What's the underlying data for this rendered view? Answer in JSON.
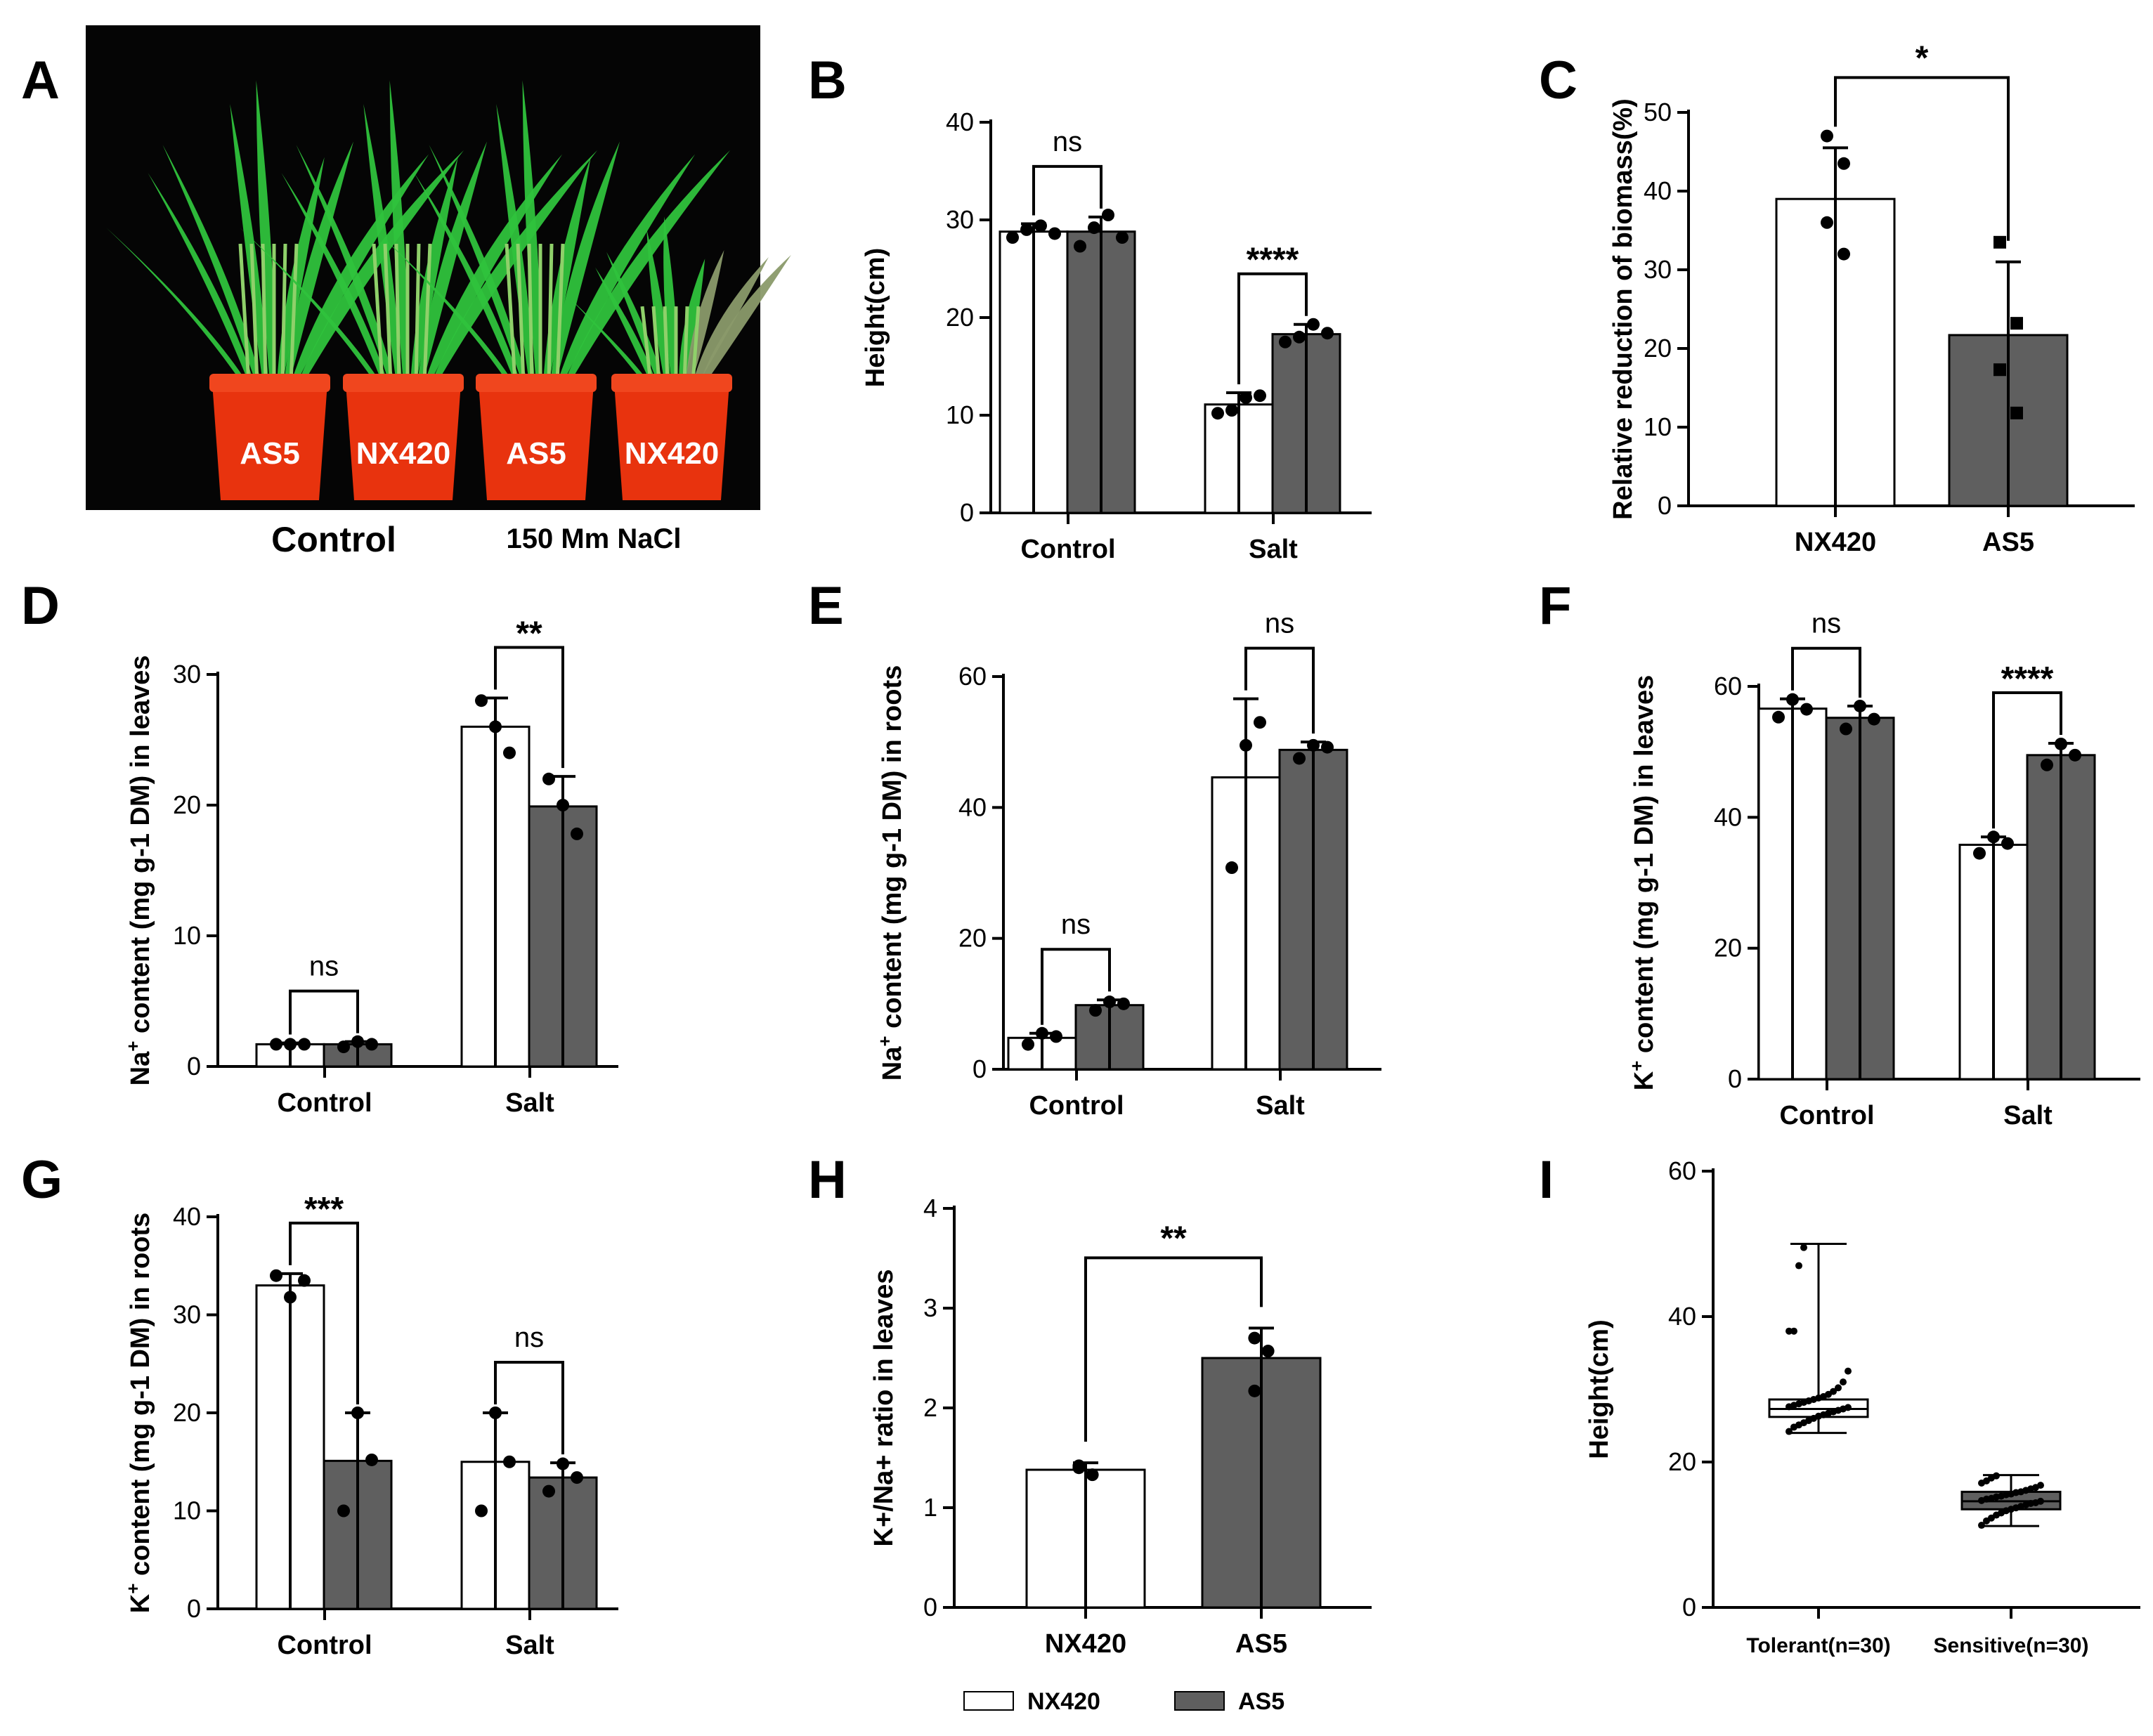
{
  "colors": {
    "nx420": "#ffffff",
    "as5": "#5f5f5f",
    "axis": "#000000",
    "photo_bg": "#050505",
    "pot": "#e8330e",
    "plant": "#2fbf3b"
  },
  "legend": [
    {
      "label": "NX420",
      "fill": "#ffffff"
    },
    {
      "label": "AS5",
      "fill": "#5f5f5f"
    }
  ],
  "photo": {
    "label": "A",
    "pots": [
      "AS5",
      "NX420",
      "AS5",
      "NX420"
    ],
    "caption_control": "Control",
    "caption_salt": "150 Mm NaCl"
  },
  "chart_data": [
    {
      "id": "B",
      "label": "B",
      "type": "bar",
      "ylabel": "Height(cm)",
      "ylim": [
        0,
        40
      ],
      "yticks": [
        0,
        10,
        20,
        30,
        40
      ],
      "categories": [
        "Control",
        "Salt"
      ],
      "series": [
        {
          "name": "NX420",
          "values": [
            28.8,
            11.1
          ],
          "errors": [
            0.8,
            1.2
          ],
          "points": [
            [
              28.2,
              29.0,
              29.4,
              28.6
            ],
            [
              10.2,
              10.5,
              11.8,
              12.0
            ]
          ]
        },
        {
          "name": "AS5",
          "values": [
            28.8,
            18.3
          ],
          "errors": [
            1.5,
            1.0
          ],
          "points": [
            [
              27.3,
              29.2,
              30.5,
              28.2
            ],
            [
              17.5,
              18.0,
              19.3,
              18.4
            ]
          ]
        }
      ],
      "significance": [
        "ns",
        "****"
      ]
    },
    {
      "id": "C",
      "label": "C",
      "type": "bar",
      "ylabel": "Relative  reduction of biomass(%)",
      "ylim": [
        0,
        50
      ],
      "yticks": [
        0,
        10,
        20,
        30,
        40,
        50
      ],
      "categories": [
        "NX420",
        "AS5"
      ],
      "bars": [
        {
          "value": 39.0,
          "error": 6.5,
          "points": [
            47.0,
            43.5,
            36.0,
            32.0
          ],
          "fill": "#ffffff",
          "marker": "circle"
        },
        {
          "value": 21.7,
          "error": 9.3,
          "points": [
            33.5,
            23.2,
            17.3,
            11.8
          ],
          "fill": "#5f5f5f",
          "marker": "square"
        }
      ],
      "significance": "*"
    },
    {
      "id": "D",
      "label": "D",
      "type": "bar",
      "ylabel": "content (mg g-1 DM) in leaves",
      "ylabel_ion": "Na",
      "ylabel_sup": "+",
      "ylim": [
        0,
        30
      ],
      "yticks": [
        0,
        10,
        20,
        30
      ],
      "categories": [
        "Control",
        "Salt"
      ],
      "series": [
        {
          "name": "NX420",
          "values": [
            1.7,
            26.0
          ],
          "errors": [
            0.1,
            2.2
          ],
          "points": [
            [
              1.7,
              1.7,
              1.7
            ],
            [
              28.0,
              26.0,
              24.0
            ]
          ]
        },
        {
          "name": "AS5",
          "values": [
            1.7,
            19.9
          ],
          "errors": [
            0.2,
            2.3
          ],
          "points": [
            [
              1.5,
              1.9,
              1.7
            ],
            [
              22.0,
              20.0,
              17.8
            ]
          ]
        }
      ],
      "significance": [
        "ns",
        "**"
      ]
    },
    {
      "id": "E",
      "label": "E",
      "type": "bar",
      "ylabel": "content (mg g-1 DM) in roots",
      "ylabel_ion": "Na",
      "ylabel_sup": "+",
      "ylim": [
        0,
        60
      ],
      "yticks": [
        0,
        20,
        40,
        60
      ],
      "categories": [
        "Control",
        "Salt"
      ],
      "series": [
        {
          "name": "NX420",
          "values": [
            4.8,
            44.6
          ],
          "errors": [
            0.7,
            12.0
          ],
          "points": [
            [
              3.8,
              5.5,
              5.0
            ],
            [
              30.8,
              49.5,
              53.0
            ]
          ]
        },
        {
          "name": "AS5",
          "values": [
            9.8,
            48.8
          ],
          "errors": [
            0.8,
            1.2
          ],
          "points": [
            [
              9.0,
              10.3,
              10.0
            ],
            [
              47.5,
              49.5,
              49.2
            ]
          ]
        }
      ],
      "significance": [
        "ns",
        "ns"
      ]
    },
    {
      "id": "F",
      "label": "F",
      "type": "bar",
      "ylabel": "content (mg g-1 DM) in leaves",
      "ylabel_ion": "K",
      "ylabel_sup": "+",
      "ylim": [
        0,
        60
      ],
      "yticks": [
        0,
        20,
        40,
        60
      ],
      "categories": [
        "Control",
        "Salt"
      ],
      "series": [
        {
          "name": "NX420",
          "values": [
            56.6,
            35.8
          ],
          "errors": [
            1.5,
            1.2
          ],
          "points": [
            [
              55.3,
              58.0,
              56.5
            ],
            [
              34.5,
              37.0,
              36.0
            ]
          ]
        },
        {
          "name": "AS5",
          "values": [
            55.2,
            49.5
          ],
          "errors": [
            1.8,
            1.8
          ],
          "points": [
            [
              53.5,
              57.0,
              55.0
            ],
            [
              48.0,
              51.2,
              49.5
            ]
          ]
        }
      ],
      "significance": [
        "ns",
        "****"
      ]
    },
    {
      "id": "G",
      "label": "G",
      "type": "bar",
      "ylabel": "content (mg g-1 DM) in roots",
      "ylabel_ion": "K",
      "ylabel_sup": "+",
      "ylim": [
        0,
        40
      ],
      "yticks": [
        0,
        10,
        20,
        30,
        40
      ],
      "categories": [
        "Control",
        "Salt"
      ],
      "series": [
        {
          "name": "NX420",
          "values": [
            33.0,
            15.0
          ],
          "errors": [
            1.2,
            5.0
          ],
          "points": [
            [
              34.0,
              31.8,
              33.5
            ],
            [
              10.0,
              20.0,
              15.0
            ]
          ]
        },
        {
          "name": "AS5",
          "values": [
            15.1,
            13.4
          ],
          "errors": [
            4.9,
            1.5
          ],
          "points": [
            [
              10.0,
              20.0,
              15.2
            ],
            [
              12.0,
              14.8,
              13.4
            ]
          ]
        }
      ],
      "significance": [
        "***",
        "ns"
      ]
    },
    {
      "id": "H",
      "label": "H",
      "type": "bar",
      "ylabel": "ratio in leaves",
      "ylabel_prefix": "K+/Na+",
      "ylim": [
        0,
        4
      ],
      "yticks": [
        0,
        1,
        2,
        3,
        4
      ],
      "categories": [
        "NX420",
        "AS5"
      ],
      "bars": [
        {
          "value": 1.38,
          "error": 0.07,
          "points": [
            1.4,
            1.33,
            1.42
          ],
          "fill": "#ffffff",
          "marker": "circle"
        },
        {
          "value": 2.5,
          "error": 0.3,
          "points": [
            2.7,
            2.57,
            2.17
          ],
          "fill": "#5f5f5f",
          "marker": "circle"
        }
      ],
      "significance": "**"
    },
    {
      "id": "I",
      "label": "I",
      "type": "box",
      "ylabel": "Height(cm)",
      "ylim": [
        0,
        60
      ],
      "yticks": [
        0,
        20,
        40,
        60
      ],
      "categories": [
        "Tolerant(n=30)",
        "Sensitive(n=30)"
      ],
      "boxes": [
        {
          "min": 24.0,
          "q1": 26.2,
          "median": 27.3,
          "q3": 28.6,
          "max": 50.0,
          "fill": "#ffffff",
          "points": [
            24.2,
            24.8,
            25.1,
            25.4,
            25.7,
            26.0,
            26.3,
            26.5,
            26.7,
            26.9,
            27.1,
            27.3,
            27.5,
            27.6,
            27.8,
            28.0,
            28.2,
            28.4,
            28.6,
            28.8,
            29.0,
            29.3,
            29.7,
            30.2,
            31.0,
            32.5,
            38.0,
            38.0,
            47.0,
            49.5
          ]
        },
        {
          "min": 11.2,
          "q1": 13.5,
          "median": 14.6,
          "q3": 15.9,
          "max": 18.2,
          "fill": "#5f5f5f",
          "points": [
            11.3,
            11.9,
            12.3,
            12.7,
            13.0,
            13.3,
            13.5,
            13.7,
            13.9,
            14.1,
            14.3,
            14.4,
            14.6,
            14.7,
            14.9,
            15.0,
            15.2,
            15.3,
            15.5,
            15.6,
            15.8,
            15.9,
            16.1,
            16.3,
            16.5,
            16.8,
            17.1,
            17.4,
            17.8,
            18.1
          ]
        }
      ]
    }
  ]
}
